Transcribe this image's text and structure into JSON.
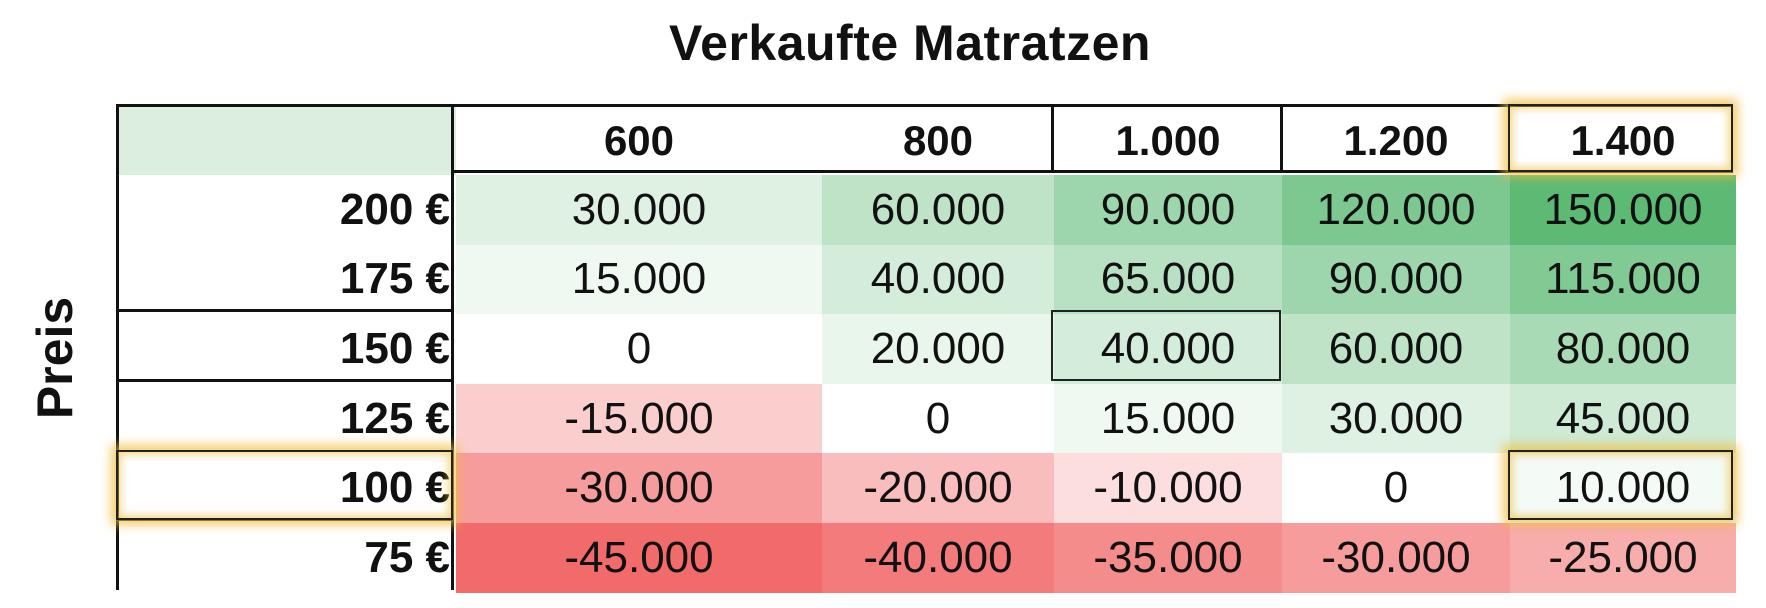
{
  "chart_data": {
    "type": "heatmap",
    "title": "Verkaufte Matratzen",
    "ylabel": "Preis",
    "columns": [
      "600",
      "800",
      "1.000",
      "1.200",
      "1.400"
    ],
    "rows": [
      "200 €",
      "175 €",
      "150 €",
      "125 €",
      "100 €",
      "75 €"
    ],
    "values": [
      [
        30000,
        60000,
        90000,
        120000,
        150000
      ],
      [
        15000,
        40000,
        65000,
        90000,
        115000
      ],
      [
        0,
        20000,
        40000,
        60000,
        80000
      ],
      [
        -15000,
        0,
        15000,
        30000,
        45000
      ],
      [
        -30000,
        -20000,
        -10000,
        0,
        10000
      ],
      [
        -45000,
        -40000,
        -35000,
        -30000,
        -25000
      ]
    ],
    "value_labels": [
      [
        "30.000",
        "60.000",
        "90.000",
        "120.000",
        "150.000"
      ],
      [
        "15.000",
        "40.000",
        "65.000",
        "90.000",
        "115.000"
      ],
      [
        "0",
        "20.000",
        "40.000",
        "60.000",
        "80.000"
      ],
      [
        "-15.000",
        "0",
        "15.000",
        "30.000",
        "45.000"
      ],
      [
        "-30.000",
        "-20.000",
        "-10.000",
        "0",
        "10.000"
      ],
      [
        "-45.000",
        "-40.000",
        "-35.000",
        "-30.000",
        "-25.000"
      ]
    ],
    "color_scale": {
      "negative": "#f26b6b",
      "zero": "#ffffff",
      "positive": "#5cba74"
    },
    "highlighted": {
      "column": "1.400",
      "row": "100 €",
      "cell_outlined": [
        "150 €",
        "1.000"
      ]
    }
  }
}
